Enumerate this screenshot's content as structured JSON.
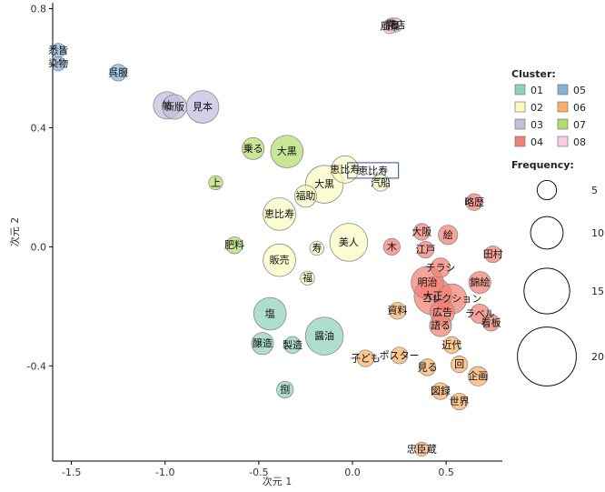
{
  "chart_data": {
    "type": "scatter",
    "xlabel": "次元 1",
    "ylabel": "次元 2",
    "xlim": [
      -1.6,
      0.8
    ],
    "ylim": [
      -0.72,
      0.82
    ],
    "xticks": [
      -1.5,
      -1.0,
      -0.5,
      0.0,
      0.5
    ],
    "xtick_labels": [
      "-1.5",
      "-1.0",
      "-0.5",
      "0.0",
      "0.5"
    ],
    "yticks": [
      -0.4,
      0.0,
      0.4,
      0.8
    ],
    "ytick_labels": [
      "-0.4",
      "0.0",
      "0.4",
      "0.8"
    ],
    "cluster_legend": {
      "title": "Cluster:",
      "entries": [
        {
          "label": "01",
          "color": "#8fd1be"
        },
        {
          "label": "02",
          "color": "#fbfbc1"
        },
        {
          "label": "03",
          "color": "#c4bddc"
        },
        {
          "label": "04",
          "color": "#f47f73"
        },
        {
          "label": "05",
          "color": "#86b1d4"
        },
        {
          "label": "06",
          "color": "#fbb065"
        },
        {
          "label": "07",
          "color": "#b4dc6c"
        },
        {
          "label": "08",
          "color": "#f9cde3"
        }
      ]
    },
    "size_legend": {
      "title": "Frequency:",
      "values": [
        5,
        10,
        15,
        20
      ],
      "labels": [
        "5",
        "10",
        "15",
        "20"
      ]
    },
    "points": [
      {
        "label": "花",
        "x": 0.21,
        "y": 0.745,
        "freq": 3,
        "cluster": "08"
      },
      {
        "label": "開店",
        "x": 0.23,
        "y": 0.745,
        "freq": 3,
        "cluster": "08"
      },
      {
        "label": "風景",
        "x": 0.2,
        "y": 0.74,
        "freq": 3,
        "cluster": "08"
      },
      {
        "label": "悉皆",
        "x": -1.57,
        "y": 0.66,
        "freq": 3,
        "cluster": "05"
      },
      {
        "label": "染物",
        "x": -1.57,
        "y": 0.615,
        "freq": 3,
        "cluster": "05"
      },
      {
        "label": "呉服",
        "x": -1.25,
        "y": 0.585,
        "freq": 4,
        "cluster": "05"
      },
      {
        "label": "帖",
        "x": -0.99,
        "y": 0.475,
        "freq": 8,
        "cluster": "03"
      },
      {
        "label": "新版",
        "x": -0.95,
        "y": 0.47,
        "freq": 7,
        "cluster": "03"
      },
      {
        "label": "見本",
        "x": -0.8,
        "y": 0.47,
        "freq": 10,
        "cluster": "03"
      },
      {
        "label": "乗る",
        "x": -0.53,
        "y": 0.33,
        "freq": 6,
        "cluster": "07"
      },
      {
        "label": "大黒",
        "x": -0.35,
        "y": 0.32,
        "freq": 10,
        "cluster": "07"
      },
      {
        "label": "上",
        "x": -0.73,
        "y": 0.215,
        "freq": 3,
        "cluster": "07"
      },
      {
        "label": "肥料",
        "x": -0.63,
        "y": 0.005,
        "freq": 4,
        "cluster": "07"
      },
      {
        "label": "恵比寿",
        "x": -0.04,
        "y": 0.26,
        "freq": 8,
        "cluster": "02"
      },
      {
        "label": "大黒",
        "x": -0.15,
        "y": 0.21,
        "freq": 12,
        "cluster": "02"
      },
      {
        "label": "汽船",
        "x": 0.15,
        "y": 0.215,
        "freq": 4,
        "cluster": "02"
      },
      {
        "label": "福助",
        "x": -0.25,
        "y": 0.17,
        "freq": 6,
        "cluster": "02"
      },
      {
        "label": "恵比寿",
        "x": -0.39,
        "y": 0.11,
        "freq": 10,
        "cluster": "02"
      },
      {
        "label": "美人",
        "x": -0.02,
        "y": 0.015,
        "freq": 12,
        "cluster": "02"
      },
      {
        "label": "寿",
        "x": -0.19,
        "y": -0.005,
        "freq": 3,
        "cluster": "02"
      },
      {
        "label": "販売",
        "x": -0.39,
        "y": -0.045,
        "freq": 10,
        "cluster": "02"
      },
      {
        "label": "福",
        "x": -0.24,
        "y": -0.105,
        "freq": 3,
        "cluster": "02"
      },
      {
        "label": "略歴",
        "x": 0.65,
        "y": 0.15,
        "freq": 4,
        "cluster": "04"
      },
      {
        "label": "大阪",
        "x": 0.37,
        "y": 0.05,
        "freq": 4,
        "cluster": "04"
      },
      {
        "label": "絵",
        "x": 0.51,
        "y": 0.04,
        "freq": 5,
        "cluster": "04"
      },
      {
        "label": "江戸",
        "x": 0.39,
        "y": -0.01,
        "freq": 4,
        "cluster": "04"
      },
      {
        "label": "木",
        "x": 0.21,
        "y": 0.0,
        "freq": 4,
        "cluster": "04"
      },
      {
        "label": "田村",
        "x": 0.75,
        "y": -0.025,
        "freq": 4,
        "cluster": "04"
      },
      {
        "label": "チラシ",
        "x": 0.47,
        "y": -0.07,
        "freq": 5,
        "cluster": "04"
      },
      {
        "label": "錦絵",
        "x": 0.68,
        "y": -0.12,
        "freq": 6,
        "cluster": "04"
      },
      {
        "label": "明治",
        "x": 0.4,
        "y": -0.12,
        "freq": 10,
        "cluster": "04"
      },
      {
        "label": "大正",
        "x": 0.43,
        "y": -0.165,
        "freq": 12,
        "cluster": "04"
      },
      {
        "label": "コレクション",
        "x": 0.53,
        "y": -0.175,
        "freq": 9,
        "cluster": "04"
      },
      {
        "label": "ラベル",
        "x": 0.68,
        "y": -0.225,
        "freq": 5,
        "cluster": "04"
      },
      {
        "label": "広告",
        "x": 0.48,
        "y": -0.22,
        "freq": 7,
        "cluster": "04"
      },
      {
        "label": "看板",
        "x": 0.74,
        "y": -0.255,
        "freq": 4,
        "cluster": "04"
      },
      {
        "label": "語る",
        "x": 0.47,
        "y": -0.265,
        "freq": 6,
        "cluster": "04"
      },
      {
        "label": "資料",
        "x": 0.24,
        "y": -0.215,
        "freq": 4,
        "cluster": "06"
      },
      {
        "label": "近代",
        "x": 0.53,
        "y": -0.33,
        "freq": 4,
        "cluster": "06"
      },
      {
        "label": "子ども",
        "x": 0.07,
        "y": -0.375,
        "freq": 4,
        "cluster": "06"
      },
      {
        "label": "ポスター",
        "x": 0.25,
        "y": -0.365,
        "freq": 4,
        "cluster": "06"
      },
      {
        "label": "見る",
        "x": 0.4,
        "y": -0.405,
        "freq": 4,
        "cluster": "06"
      },
      {
        "label": "回",
        "x": 0.57,
        "y": -0.395,
        "freq": 4,
        "cluster": "06"
      },
      {
        "label": "企画",
        "x": 0.67,
        "y": -0.435,
        "freq": 5,
        "cluster": "06"
      },
      {
        "label": "図録",
        "x": 0.47,
        "y": -0.485,
        "freq": 4,
        "cluster": "06"
      },
      {
        "label": "世界",
        "x": 0.57,
        "y": -0.52,
        "freq": 4,
        "cluster": "06"
      },
      {
        "label": "忠臣蔵",
        "x": 0.37,
        "y": -0.68,
        "freq": 3,
        "cluster": "06"
      },
      {
        "label": "塩",
        "x": -0.44,
        "y": -0.225,
        "freq": 10,
        "cluster": "01"
      },
      {
        "label": "醸造",
        "x": -0.48,
        "y": -0.325,
        "freq": 6,
        "cluster": "01"
      },
      {
        "label": "製造",
        "x": -0.32,
        "y": -0.33,
        "freq": 4,
        "cluster": "01"
      },
      {
        "label": "醤油",
        "x": -0.15,
        "y": -0.3,
        "freq": 12,
        "cluster": "01"
      },
      {
        "label": "捌",
        "x": -0.36,
        "y": -0.48,
        "freq": 4,
        "cluster": "01"
      }
    ],
    "annotation": {
      "label": "恵比寿"
    }
  }
}
